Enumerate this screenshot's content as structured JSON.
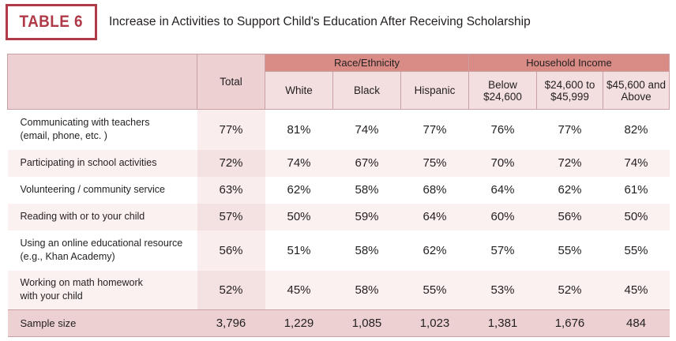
{
  "badge": "TABLE 6",
  "title": "Increase in Activities to Support Child's Education After Receiving Scholarship",
  "header": {
    "total": "Total",
    "race_group": "Race/Ethnicity",
    "income_group": "Household Income",
    "race": [
      "White",
      "Black",
      "Hispanic"
    ],
    "income": [
      [
        "Below",
        "$24,600"
      ],
      [
        "$24,600 to",
        "$45,999"
      ],
      [
        "$45,600 and",
        "Above"
      ]
    ]
  },
  "rows": [
    {
      "label": [
        "Communicating with teachers",
        "(email, phone, etc. )"
      ],
      "values": [
        "77%",
        "81%",
        "74%",
        "77%",
        "76%",
        "77%",
        "82%"
      ]
    },
    {
      "label": [
        "Participating in school activities"
      ],
      "values": [
        "72%",
        "74%",
        "67%",
        "75%",
        "70%",
        "72%",
        "74%"
      ]
    },
    {
      "label": [
        "Volunteering / community service"
      ],
      "values": [
        "63%",
        "62%",
        "58%",
        "68%",
        "64%",
        "62%",
        "61%"
      ]
    },
    {
      "label": [
        "Reading with or to your child"
      ],
      "values": [
        "57%",
        "50%",
        "59%",
        "64%",
        "60%",
        "56%",
        "50%"
      ]
    },
    {
      "label": [
        "Using an online educational resource",
        "(e.g., Khan Academy)"
      ],
      "values": [
        "56%",
        "51%",
        "58%",
        "62%",
        "57%",
        "55%",
        "55%"
      ]
    },
    {
      "label": [
        "Working on math homework",
        "with your child"
      ],
      "values": [
        "52%",
        "45%",
        "58%",
        "55%",
        "53%",
        "52%",
        "45%"
      ]
    }
  ],
  "sample": {
    "label": "Sample size",
    "values": [
      "3,796",
      "1,229",
      "1,085",
      "1,023",
      "1,381",
      "1,676",
      "484"
    ]
  }
}
